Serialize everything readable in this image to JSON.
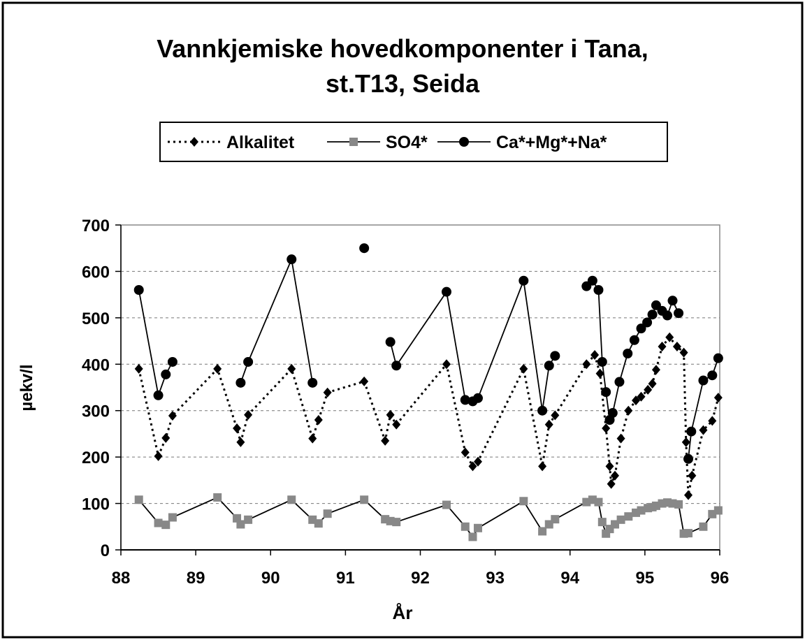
{
  "chart_data": {
    "type": "line",
    "title": [
      "Vannkjemiske hovedkomponenter i Tana,",
      "st.T13, Seida"
    ],
    "xlabel": "År",
    "ylabel": "µekv/l",
    "xlim": [
      88,
      96
    ],
    "ylim": [
      0,
      700
    ],
    "xticks": [
      88,
      89,
      90,
      91,
      92,
      93,
      94,
      95,
      96
    ],
    "yticks": [
      0,
      100,
      200,
      300,
      400,
      500,
      600,
      700
    ],
    "grid": true,
    "legend": "top",
    "series": [
      {
        "name": "Alkalitet",
        "color": "#000000",
        "marker": "diamond",
        "dash": "dotted",
        "x": [
          88.24,
          88.5,
          88.6,
          88.69,
          89.29,
          89.55,
          89.6,
          89.7,
          90.28,
          90.56,
          90.64,
          90.76,
          91.25,
          91.53,
          91.6,
          91.68,
          92.35,
          92.6,
          92.7,
          92.77,
          93.38,
          93.63,
          93.72,
          93.8,
          94.22,
          94.33,
          94.4,
          94.48,
          94.53,
          94.55,
          94.6,
          94.68,
          94.78,
          94.88,
          94.95,
          95.04,
          95.1,
          95.15,
          95.23,
          95.33,
          95.43,
          95.52,
          95.55,
          95.58,
          95.63,
          95.78,
          95.9,
          95.98
        ],
        "values": [
          390,
          202,
          241,
          289,
          390,
          262,
          232,
          291,
          390,
          240,
          280,
          339,
          363,
          235,
          291,
          270,
          400,
          210,
          180,
          190,
          390,
          180,
          270,
          290,
          400,
          420,
          380,
          262,
          180,
          142,
          160,
          240,
          300,
          322,
          330,
          345,
          358,
          388,
          438,
          458,
          438,
          425,
          232,
          118,
          160,
          258,
          278,
          328
        ]
      },
      {
        "name": "SO4*",
        "color": "#888888",
        "marker": "square",
        "dash": "solid",
        "x": [
          88.24,
          88.5,
          88.6,
          88.69,
          89.29,
          89.55,
          89.6,
          89.7,
          90.28,
          90.56,
          90.64,
          90.76,
          91.25,
          91.53,
          91.6,
          91.68,
          92.35,
          92.6,
          92.7,
          92.77,
          93.38,
          93.63,
          93.72,
          93.8,
          94.22,
          94.3,
          94.38,
          94.43,
          94.48,
          94.53,
          94.6,
          94.68,
          94.78,
          94.88,
          94.95,
          95.04,
          95.1,
          95.15,
          95.23,
          95.3,
          95.37,
          95.45,
          95.52,
          95.58,
          95.78,
          95.9,
          95.98
        ],
        "values": [
          108,
          58,
          54,
          70,
          113,
          68,
          55,
          65,
          108,
          65,
          57,
          78,
          108,
          66,
          62,
          60,
          97,
          50,
          28,
          47,
          105,
          40,
          55,
          66,
          103,
          108,
          103,
          60,
          35,
          45,
          55,
          65,
          72,
          80,
          85,
          90,
          92,
          95,
          100,
          102,
          100,
          98,
          35,
          36,
          50,
          77,
          85
        ]
      },
      {
        "name": "Ca*+Mg*+Na*",
        "color": "#000000",
        "marker": "circle",
        "dash": "solid",
        "x": [
          88.24,
          88.5,
          88.6,
          88.69,
          null,
          89.6,
          89.7,
          90.28,
          90.56,
          null,
          91.25,
          null,
          91.6,
          91.68,
          92.35,
          92.6,
          92.7,
          92.77,
          93.38,
          93.63,
          93.72,
          93.8,
          null,
          94.22,
          94.3,
          94.38,
          94.43,
          94.48,
          94.53,
          94.57,
          94.66,
          94.77,
          94.86,
          94.95,
          95.03,
          95.1,
          95.15,
          95.23,
          95.3,
          95.37,
          95.45,
          null,
          95.58,
          95.62,
          95.78,
          95.9,
          95.98
        ],
        "values": [
          560,
          333,
          378,
          405,
          null,
          360,
          405,
          626,
          360,
          null,
          650,
          null,
          448,
          397,
          556,
          323,
          320,
          327,
          580,
          300,
          397,
          418,
          null,
          568,
          580,
          560,
          405,
          340,
          280,
          295,
          362,
          423,
          452,
          477,
          490,
          507,
          527,
          515,
          505,
          537,
          510,
          null,
          196,
          255,
          365,
          376,
          413
        ]
      }
    ]
  }
}
